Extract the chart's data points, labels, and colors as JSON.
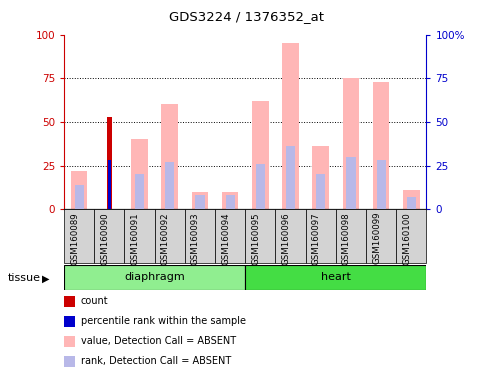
{
  "title": "GDS3224 / 1376352_at",
  "samples": [
    "GSM160089",
    "GSM160090",
    "GSM160091",
    "GSM160092",
    "GSM160093",
    "GSM160094",
    "GSM160095",
    "GSM160096",
    "GSM160097",
    "GSM160098",
    "GSM160099",
    "GSM160100"
  ],
  "value_absent": [
    22,
    0,
    40,
    60,
    10,
    10,
    62,
    95,
    36,
    75,
    73,
    11
  ],
  "rank_absent": [
    14,
    0,
    20,
    27,
    8,
    8,
    26,
    36,
    20,
    30,
    28,
    7
  ],
  "count": [
    0,
    53,
    0,
    0,
    0,
    0,
    0,
    0,
    0,
    0,
    0,
    0
  ],
  "percentile_rank": [
    0,
    28,
    0,
    0,
    0,
    0,
    0,
    0,
    0,
    0,
    0,
    0
  ],
  "yticks": [
    0,
    25,
    50,
    75,
    100
  ],
  "bar_width": 0.55,
  "color_value_absent": "#ffb6b6",
  "color_rank_absent": "#b8b8e8",
  "color_count": "#cc0000",
  "color_percentile": "#0000cc",
  "color_diaphragm": "#90ee90",
  "color_heart": "#44dd44",
  "color_sample_bg": "#d3d3d3",
  "color_left_axis": "#cc0000",
  "color_right_axis": "#0000cc",
  "diaphragm_range": [
    0,
    6
  ],
  "heart_range": [
    6,
    12
  ],
  "legend_items": [
    [
      "#cc0000",
      "count"
    ],
    [
      "#0000cc",
      "percentile rank within the sample"
    ],
    [
      "#ffb6b6",
      "value, Detection Call = ABSENT"
    ],
    [
      "#b8b8e8",
      "rank, Detection Call = ABSENT"
    ]
  ]
}
